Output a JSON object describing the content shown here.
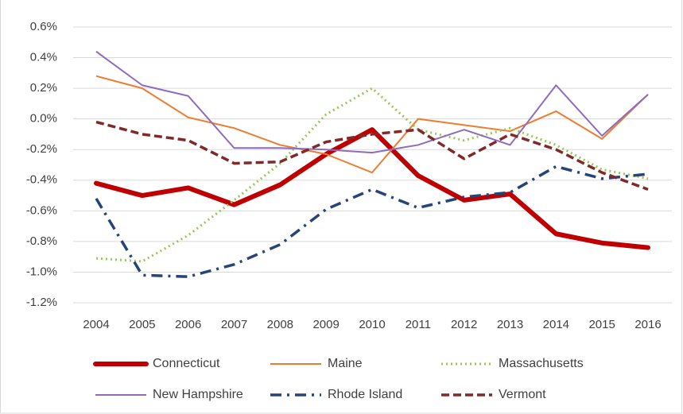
{
  "chart_data": {
    "type": "line",
    "categories": [
      "2004",
      "2005",
      "2006",
      "2007",
      "2008",
      "2009",
      "2010",
      "2011",
      "2012",
      "2013",
      "2014",
      "2015",
      "2016"
    ],
    "series": [
      {
        "name": "Connecticut",
        "color": "#c00000",
        "style": "thick",
        "values": [
          -0.42,
          -0.5,
          -0.45,
          -0.56,
          -0.43,
          -0.23,
          -0.07,
          -0.37,
          -0.53,
          -0.49,
          -0.75,
          -0.81,
          -0.84
        ]
      },
      {
        "name": "Maine",
        "color": "#ed7d31",
        "style": "solid",
        "values": [
          0.28,
          0.2,
          0.01,
          -0.06,
          -0.17,
          -0.23,
          -0.35,
          0.0,
          -0.04,
          -0.08,
          0.05,
          -0.13,
          0.16
        ]
      },
      {
        "name": "Massachusetts",
        "color": "#9bc55a",
        "style": "dotted",
        "values": [
          -0.91,
          -0.93,
          -0.76,
          -0.53,
          -0.29,
          0.03,
          0.2,
          -0.07,
          -0.14,
          -0.06,
          -0.17,
          -0.33,
          -0.39
        ]
      },
      {
        "name": "New Hampshire",
        "color": "#8e6bbf",
        "style": "solid",
        "values": [
          0.44,
          0.22,
          0.15,
          -0.19,
          -0.19,
          -0.2,
          -0.22,
          -0.17,
          -0.07,
          -0.17,
          0.22,
          -0.11,
          0.16
        ]
      },
      {
        "name": "Rhode Island",
        "color": "#264478",
        "style": "dashdot",
        "values": [
          -0.52,
          -1.02,
          -1.03,
          -0.95,
          -0.82,
          -0.59,
          -0.46,
          -0.58,
          -0.51,
          -0.48,
          -0.31,
          -0.39,
          -0.36
        ]
      },
      {
        "name": "Vermont",
        "color": "#7f2a2a",
        "style": "dashed",
        "values": [
          -0.02,
          -0.1,
          -0.14,
          -0.29,
          -0.28,
          -0.15,
          -0.1,
          -0.07,
          -0.26,
          -0.1,
          -0.2,
          -0.35,
          -0.46
        ]
      }
    ],
    "ylim": [
      -1.2,
      0.6
    ],
    "yticks": [
      {
        "value": 0.6,
        "label": "0.6%"
      },
      {
        "value": 0.4,
        "label": "0.4%"
      },
      {
        "value": 0.2,
        "label": "0.2%"
      },
      {
        "value": 0,
        "label": "0.0%"
      },
      {
        "value": -0.2,
        "label": "-0.2%"
      },
      {
        "value": -0.4,
        "label": "-0.4%"
      },
      {
        "value": -0.6,
        "label": "-0.6%"
      },
      {
        "value": -0.8,
        "label": "-0.8%"
      },
      {
        "value": -1.0,
        "label": "-1.0%"
      },
      {
        "value": -1.2,
        "label": "-1.2%"
      }
    ],
    "grid": true,
    "legend": "bottom"
  }
}
